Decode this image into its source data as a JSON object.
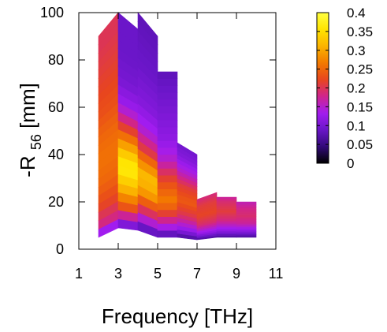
{
  "chart_data": {
    "type": "heatmap",
    "xlabel": "Frequency [THz]",
    "ylabel": "-R",
    "ylabel_sub": "56",
    "ylabel_unit": " [mm]",
    "xlim": [
      1,
      11
    ],
    "ylim": [
      0,
      100
    ],
    "x_ticks": [
      1,
      3,
      5,
      7,
      9,
      11
    ],
    "y_ticks": [
      0,
      20,
      40,
      60,
      80,
      100
    ],
    "colorbar": {
      "range": [
        0,
        0.4
      ],
      "ticks": [
        "0.4",
        "0.35",
        "0.3",
        "0.25",
        "0.2",
        "0.15",
        "0.1",
        "0.05",
        "0"
      ],
      "palette": [
        "#000000",
        "#330a7a",
        "#6a16c8",
        "#a21cf0",
        "#d0248c",
        "#e8461e",
        "#f37a00",
        "#fbb300",
        "#ffe400",
        "#ffff40"
      ]
    },
    "columns": [
      {
        "x0": 2,
        "x1": 3,
        "ylo": [
          5,
          9
        ],
        "yhi": [
          90,
          100
        ],
        "profile": [
          [
            5,
            0.06
          ],
          [
            8,
            0.12
          ],
          [
            12,
            0.18
          ],
          [
            20,
            0.22
          ],
          [
            30,
            0.25
          ],
          [
            40,
            0.26
          ],
          [
            50,
            0.25
          ],
          [
            60,
            0.23
          ],
          [
            70,
            0.22
          ],
          [
            80,
            0.21
          ],
          [
            90,
            0.2
          ]
        ]
      },
      {
        "x0": 3,
        "x1": 4,
        "ylo": [
          9,
          8
        ],
        "yhi": [
          100,
          93
        ],
        "profile": [
          [
            9,
            0.08
          ],
          [
            12,
            0.14
          ],
          [
            18,
            0.24
          ],
          [
            26,
            0.32
          ],
          [
            34,
            0.37
          ],
          [
            40,
            0.33
          ],
          [
            46,
            0.27
          ],
          [
            52,
            0.2
          ],
          [
            60,
            0.13
          ],
          [
            70,
            0.1
          ],
          [
            82,
            0.09
          ],
          [
            100,
            0.09
          ]
        ]
      },
      {
        "x0": 4,
        "x1": 5,
        "ylo": [
          8,
          5
        ],
        "yhi": [
          100,
          90
        ],
        "profile": [
          [
            7,
            0.06
          ],
          [
            10,
            0.12
          ],
          [
            16,
            0.2
          ],
          [
            24,
            0.3
          ],
          [
            30,
            0.32
          ],
          [
            36,
            0.27
          ],
          [
            42,
            0.2
          ],
          [
            50,
            0.14
          ],
          [
            60,
            0.11
          ],
          [
            75,
            0.09
          ],
          [
            95,
            0.08
          ]
        ]
      },
      {
        "x0": 5,
        "x1": 6,
        "ylo": [
          5,
          5
        ],
        "yhi": [
          75,
          75
        ],
        "profile": [
          [
            5,
            0.05
          ],
          [
            8,
            0.12
          ],
          [
            14,
            0.2
          ],
          [
            20,
            0.27
          ],
          [
            26,
            0.24
          ],
          [
            32,
            0.2
          ],
          [
            38,
            0.15
          ],
          [
            46,
            0.12
          ],
          [
            60,
            0.1
          ],
          [
            75,
            0.08
          ]
        ]
      },
      {
        "x0": 6,
        "x1": 7,
        "ylo": [
          5,
          4
        ],
        "yhi": [
          45,
          40
        ],
        "profile": [
          [
            4,
            0.05
          ],
          [
            8,
            0.12
          ],
          [
            14,
            0.2
          ],
          [
            20,
            0.24
          ],
          [
            26,
            0.21
          ],
          [
            32,
            0.15
          ],
          [
            38,
            0.11
          ],
          [
            44,
            0.09
          ]
        ]
      },
      {
        "x0": 7,
        "x1": 8,
        "ylo": [
          4,
          5
        ],
        "yhi": [
          21,
          24
        ],
        "profile": [
          [
            4,
            0.05
          ],
          [
            7,
            0.12
          ],
          [
            11,
            0.19
          ],
          [
            15,
            0.22
          ],
          [
            19,
            0.21
          ],
          [
            23,
            0.18
          ]
        ]
      },
      {
        "x0": 8,
        "x1": 9,
        "ylo": [
          5,
          5
        ],
        "yhi": [
          22,
          22
        ],
        "profile": [
          [
            5,
            0.06
          ],
          [
            8,
            0.12
          ],
          [
            12,
            0.18
          ],
          [
            16,
            0.21
          ],
          [
            20,
            0.19
          ],
          [
            22,
            0.17
          ]
        ]
      },
      {
        "x0": 9,
        "x1": 10,
        "ylo": [
          5,
          5
        ],
        "yhi": [
          20,
          20
        ],
        "profile": [
          [
            5,
            0.06
          ],
          [
            8,
            0.12
          ],
          [
            11,
            0.17
          ],
          [
            14,
            0.19
          ],
          [
            17,
            0.18
          ],
          [
            20,
            0.16
          ]
        ]
      }
    ]
  }
}
